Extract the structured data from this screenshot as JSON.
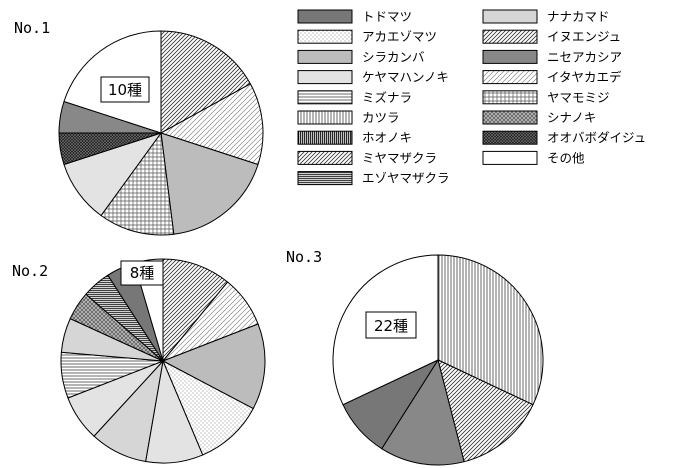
{
  "chart_data": {
    "type": "pie",
    "legend_placement": "top-right",
    "legend": [
      {
        "label": "トドマツ",
        "color": "#777777",
        "pattern": "solid"
      },
      {
        "label": "アカエゾマツ",
        "color": "#f6f6f6",
        "pattern": "dots"
      },
      {
        "label": "シラカンバ",
        "color": "#bcbcbc",
        "pattern": "solid"
      },
      {
        "label": "ケヤマハンノキ",
        "color": "#e3e3e3",
        "pattern": "solid"
      },
      {
        "label": "ミズナラ",
        "color": "#ffffff",
        "pattern": "hlines"
      },
      {
        "label": "カツラ",
        "color": "#ffffff",
        "pattern": "vlines"
      },
      {
        "label": "ホオノキ",
        "color": "#ffffff",
        "pattern": "vlines-dense"
      },
      {
        "label": "ミヤマザクラ",
        "color": "#a8a8a8",
        "pattern": "diag"
      },
      {
        "label": "エゾヤマザクラ",
        "color": "#ffffff",
        "pattern": "hlines-dense"
      },
      {
        "label": "ナナカマド",
        "color": "#d6d6d6",
        "pattern": "solid"
      },
      {
        "label": "イヌエンジュ",
        "color": "#ffffff",
        "pattern": "diag"
      },
      {
        "label": "ニセアカシア",
        "color": "#888888",
        "pattern": "solid"
      },
      {
        "label": "イタヤカエデ",
        "color": "#ffffff",
        "pattern": "diag-light"
      },
      {
        "label": "ヤマモミジ",
        "color": "#ffffff",
        "pattern": "grid"
      },
      {
        "label": "シナノキ",
        "color": "#9a9a9a",
        "pattern": "cross"
      },
      {
        "label": "オオバボダイジュ",
        "color": "#303030",
        "pattern": "cross-dark"
      },
      {
        "label": "その他",
        "color": "#ffffff",
        "pattern": "solid"
      }
    ],
    "pies": [
      {
        "name": "No.1",
        "species_count": "10種",
        "slices": [
          {
            "label": "イヌエンジュ",
            "value": 17
          },
          {
            "label": "イタヤカエデ",
            "value": 13
          },
          {
            "label": "シラカンバ",
            "value": 18
          },
          {
            "label": "ヤマモミジ",
            "value": 12
          },
          {
            "label": "ケヤマハンノキ",
            "value": 10
          },
          {
            "label": "オオバボダイジュ",
            "value": 5
          },
          {
            "label": "ニセアカシア",
            "value": 5
          },
          {
            "label": "その他",
            "value": 20
          }
        ]
      },
      {
        "name": "No.2",
        "species_count": "8種",
        "slices": [
          {
            "label": "イヌエンジュ",
            "value": 12
          },
          {
            "label": "イタヤカエデ",
            "value": 9
          },
          {
            "label": "シラカンバ",
            "value": 15
          },
          {
            "label": "アカエゾマツ",
            "value": 12
          },
          {
            "label": "ケヤマハンノキ",
            "value": 10
          },
          {
            "label": "ナナカマド",
            "value": 10
          },
          {
            "label": "ケヤマハンノキ",
            "value": 8
          },
          {
            "label": "ミズナラ",
            "value": 8
          },
          {
            "label": "ナナカマド",
            "value": 6
          },
          {
            "label": "シナノキ",
            "value": 5
          },
          {
            "label": "エゾヤマザクラ",
            "value": 5
          },
          {
            "label": "トドマツ",
            "value": 5
          },
          {
            "label": "その他",
            "value": 5
          }
        ]
      },
      {
        "name": "No.3",
        "species_count": "22種",
        "slices": [
          {
            "label": "カツラ",
            "value": 32
          },
          {
            "label": "イヌエンジュ",
            "value": 14
          },
          {
            "label": "ニセアカシア",
            "value": 13
          },
          {
            "label": "トドマツ",
            "value": 9
          },
          {
            "label": "その他",
            "value": 32
          }
        ]
      }
    ]
  }
}
